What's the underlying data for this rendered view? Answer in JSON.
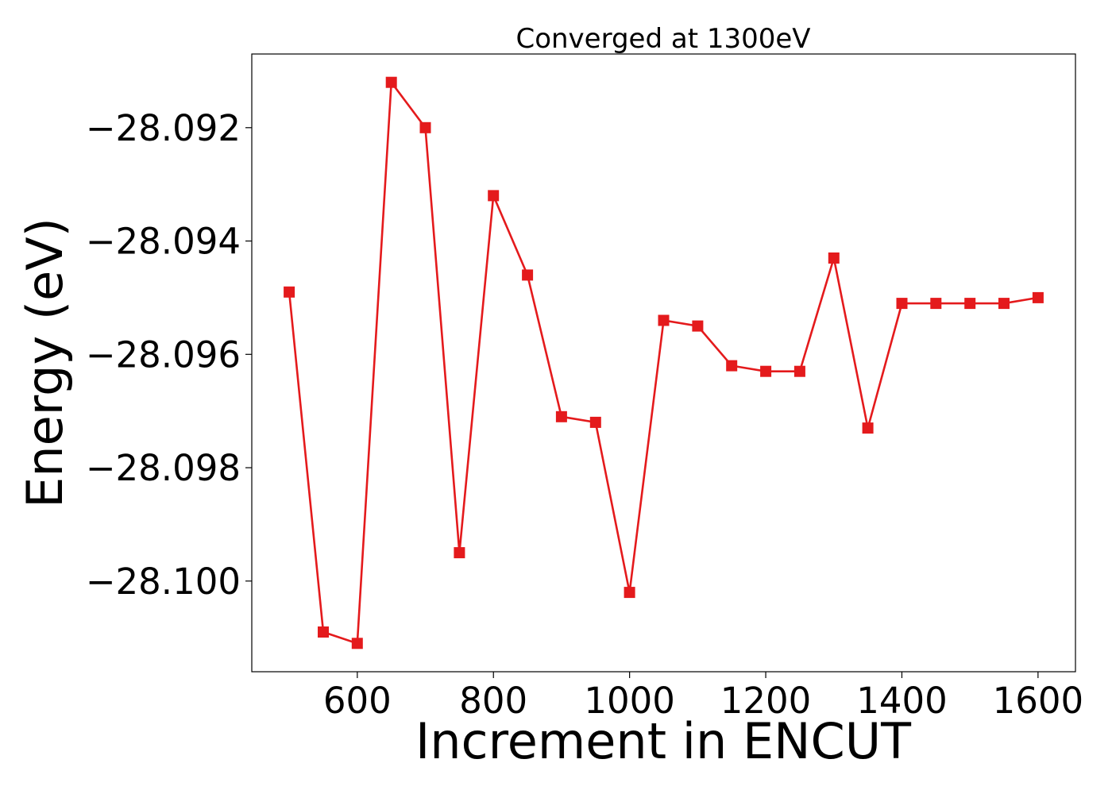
{
  "chart_data": {
    "type": "line",
    "title": "Converged at 1300eV",
    "xlabel": "Increment in ENCUT",
    "ylabel": "Energy (eV)",
    "xlim": [
      445,
      1655
    ],
    "ylim": [
      -28.1016,
      -28.0907
    ],
    "xticks": [
      600,
      800,
      1000,
      1200,
      1400,
      1600
    ],
    "xtick_labels": [
      "600",
      "800",
      "1000",
      "1200",
      "1400",
      "1600"
    ],
    "yticks": [
      -28.1,
      -28.098,
      -28.096,
      -28.094,
      -28.092
    ],
    "ytick_labels": [
      "−28.100",
      "−28.098",
      "−28.096",
      "−28.094",
      "−28.092"
    ],
    "grid": false,
    "series": [
      {
        "color": "#e41a1c",
        "marker": "square",
        "x": [
          500,
          550,
          600,
          650,
          700,
          750,
          800,
          850,
          900,
          950,
          1000,
          1050,
          1100,
          1150,
          1200,
          1250,
          1300,
          1350,
          1400,
          1450,
          1500,
          1550,
          1600
        ],
        "y": [
          -28.0949,
          -28.1009,
          -28.1011,
          -28.0912,
          -28.092,
          -28.0995,
          -28.0932,
          -28.0946,
          -28.0971,
          -28.0972,
          -28.1002,
          -28.0954,
          -28.0955,
          -28.0962,
          -28.0963,
          -28.0963,
          -28.0943,
          -28.0973,
          -28.0951,
          -28.0951,
          -28.0951,
          -28.0951,
          -28.095
        ]
      }
    ]
  }
}
